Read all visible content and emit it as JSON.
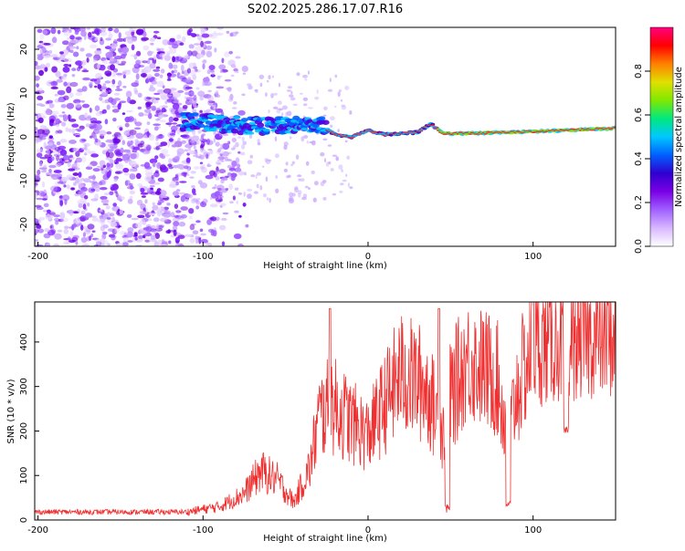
{
  "title": "S202.2025.286.17.07.R16",
  "colors": {
    "snr_line": "#ef3030",
    "background": "#ffffff",
    "axis": "#000000",
    "colormap": [
      "#ffffff",
      "#d8b8ff",
      "#a060ff",
      "#7a00e6",
      "#3000d0",
      "#0060ff",
      "#00c8ff",
      "#00e880",
      "#80e800",
      "#e0e000",
      "#ff8000",
      "#ff0000",
      "#ff0080"
    ]
  },
  "chart_data": [
    {
      "type": "heatmap",
      "xlabel": "Height of straight line (km)",
      "ylabel": "Frequency (Hz)",
      "xlim": [
        -202,
        150
      ],
      "ylim": [
        -25,
        25
      ],
      "xticks": [
        -200,
        -100,
        0,
        100
      ],
      "yticks": [
        -20,
        -10,
        0,
        10,
        20
      ],
      "colorbar": {
        "label": "Normalized spectral amplitude",
        "range": [
          0,
          1
        ],
        "ticks": [
          0.0,
          0.2,
          0.4,
          0.6,
          0.8
        ]
      },
      "ridge": [
        {
          "x": -110,
          "freq": 3.5
        },
        {
          "x": -90,
          "freq": 3.0
        },
        {
          "x": -70,
          "freq": 2.5
        },
        {
          "x": -50,
          "freq": 2.5
        },
        {
          "x": -30,
          "freq": 3.0
        },
        {
          "x": -20,
          "freq": 0.5
        },
        {
          "x": -10,
          "freq": 0.0
        },
        {
          "x": 0,
          "freq": 1.5
        },
        {
          "x": 10,
          "freq": 0.5
        },
        {
          "x": 20,
          "freq": 0.8
        },
        {
          "x": 30,
          "freq": 1.0
        },
        {
          "x": 38,
          "freq": 3.0
        },
        {
          "x": 45,
          "freq": 0.8
        },
        {
          "x": 60,
          "freq": 0.8
        },
        {
          "x": 80,
          "freq": 1.0
        },
        {
          "x": 100,
          "freq": 1.2
        },
        {
          "x": 120,
          "freq": 1.5
        },
        {
          "x": 150,
          "freq": 2.0
        }
      ]
    },
    {
      "type": "line",
      "xlabel": "Height of straight line (km)",
      "ylabel": "SNR (10 * v/v)",
      "xlim": [
        -202,
        150
      ],
      "ylim": [
        0,
        490
      ],
      "xticks": [
        -200,
        -100,
        0,
        100
      ],
      "yticks": [
        0,
        100,
        200,
        300,
        400
      ],
      "trend": [
        {
          "x": -202,
          "snr": 18
        },
        {
          "x": -150,
          "snr": 18
        },
        {
          "x": -110,
          "snr": 18
        },
        {
          "x": -90,
          "snr": 30
        },
        {
          "x": -75,
          "snr": 60
        },
        {
          "x": -65,
          "snr": 110
        },
        {
          "x": -55,
          "snr": 90
        },
        {
          "x": -45,
          "snr": 40
        },
        {
          "x": -35,
          "snr": 120
        },
        {
          "x": -30,
          "snr": 230
        },
        {
          "x": -22,
          "snr": 260
        },
        {
          "x": -10,
          "snr": 220
        },
        {
          "x": 0,
          "snr": 190
        },
        {
          "x": 10,
          "snr": 260
        },
        {
          "x": 20,
          "snr": 330
        },
        {
          "x": 35,
          "snr": 300
        },
        {
          "x": 45,
          "snr": 200
        },
        {
          "x": 50,
          "snr": 280
        },
        {
          "x": 60,
          "snr": 360
        },
        {
          "x": 70,
          "snr": 340
        },
        {
          "x": 78,
          "snr": 320
        },
        {
          "x": 85,
          "snr": 180
        },
        {
          "x": 90,
          "snr": 290
        },
        {
          "x": 100,
          "snr": 390
        },
        {
          "x": 115,
          "snr": 400
        },
        {
          "x": 130,
          "snr": 410
        },
        {
          "x": 150,
          "snr": 410
        }
      ],
      "dips": [
        {
          "x": 48,
          "snr": 15
        },
        {
          "x": 85,
          "snr": 25
        },
        {
          "x": 120,
          "snr": 190
        }
      ],
      "spikes": [
        {
          "x": -23,
          "snr": 475
        },
        {
          "x": 43,
          "snr": 475
        },
        {
          "x": 100,
          "snr": 490
        }
      ]
    }
  ]
}
